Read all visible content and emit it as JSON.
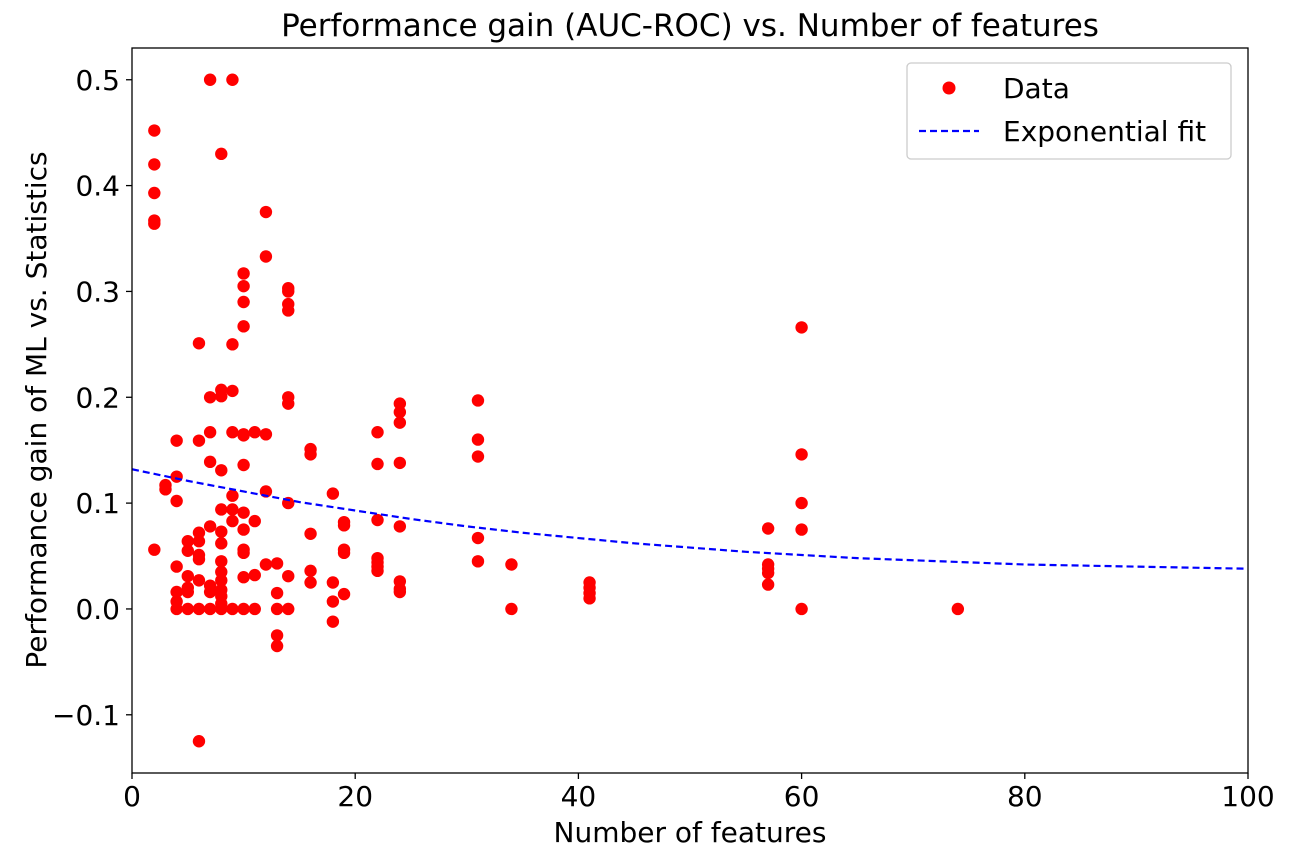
{
  "chart_data": {
    "type": "scatter",
    "title": "Performance gain (AUC-ROC) vs. Number of features",
    "xlabel": "Number of features",
    "ylabel": "Performance gain of ML vs. Statistics",
    "xlim": [
      0,
      100
    ],
    "ylim": [
      -0.155,
      0.53
    ],
    "xticks": [
      0,
      20,
      40,
      60,
      80,
      100
    ],
    "xtick_labels": [
      "0",
      "20",
      "40",
      "60",
      "80",
      "100"
    ],
    "yticks": [
      -0.1,
      0.0,
      0.1,
      0.2,
      0.3,
      0.4,
      0.5
    ],
    "ytick_labels": [
      "−0.1",
      "0.0",
      "0.1",
      "0.2",
      "0.3",
      "0.4",
      "0.5"
    ],
    "grid": false,
    "legend_position": "top-right",
    "series": [
      {
        "name": "Data",
        "kind": "points",
        "color": "#ff0000",
        "points": [
          [
            2,
            0.452
          ],
          [
            2,
            0.42
          ],
          [
            2,
            0.393
          ],
          [
            2,
            0.367
          ],
          [
            2,
            0.364
          ],
          [
            2,
            0.056
          ],
          [
            3,
            0.117
          ],
          [
            3,
            0.113
          ],
          [
            4,
            0.159
          ],
          [
            4,
            0.125
          ],
          [
            4,
            0.102
          ],
          [
            4,
            0.04
          ],
          [
            4,
            0.016
          ],
          [
            4,
            0.007
          ],
          [
            4,
            0.0
          ],
          [
            5,
            0.064
          ],
          [
            5,
            0.055
          ],
          [
            5,
            0.031
          ],
          [
            5,
            0.02
          ],
          [
            5,
            0.016
          ],
          [
            5,
            0.0
          ],
          [
            6,
            0.251
          ],
          [
            6,
            0.159
          ],
          [
            6,
            0.072
          ],
          [
            6,
            0.064
          ],
          [
            6,
            0.051
          ],
          [
            6,
            0.047
          ],
          [
            6,
            0.027
          ],
          [
            6,
            0.0
          ],
          [
            6,
            -0.125
          ],
          [
            7,
            0.5
          ],
          [
            7,
            0.2
          ],
          [
            7,
            0.167
          ],
          [
            7,
            0.139
          ],
          [
            7,
            0.078
          ],
          [
            7,
            0.022
          ],
          [
            7,
            0.016
          ],
          [
            7,
            0.0
          ],
          [
            8,
            0.43
          ],
          [
            8,
            0.207
          ],
          [
            8,
            0.201
          ],
          [
            8,
            0.131
          ],
          [
            8,
            0.094
          ],
          [
            8,
            0.073
          ],
          [
            8,
            0.062
          ],
          [
            8,
            0.045
          ],
          [
            8,
            0.035
          ],
          [
            8,
            0.027
          ],
          [
            8,
            0.018
          ],
          [
            8,
            0.012
          ],
          [
            8,
            0.005
          ],
          [
            8,
            0.0
          ],
          [
            9,
            0.5
          ],
          [
            9,
            0.25
          ],
          [
            9,
            0.206
          ],
          [
            9,
            0.167
          ],
          [
            9,
            0.107
          ],
          [
            9,
            0.094
          ],
          [
            9,
            0.083
          ],
          [
            9,
            0.0
          ],
          [
            10,
            0.317
          ],
          [
            10,
            0.305
          ],
          [
            10,
            0.29
          ],
          [
            10,
            0.267
          ],
          [
            10,
            0.165
          ],
          [
            10,
            0.164
          ],
          [
            10,
            0.136
          ],
          [
            10,
            0.091
          ],
          [
            10,
            0.075
          ],
          [
            10,
            0.056
          ],
          [
            10,
            0.053
          ],
          [
            10,
            0.03
          ],
          [
            10,
            0.0
          ],
          [
            11,
            0.167
          ],
          [
            11,
            0.083
          ],
          [
            11,
            0.032
          ],
          [
            11,
            0.0
          ],
          [
            12,
            0.375
          ],
          [
            12,
            0.333
          ],
          [
            12,
            0.165
          ],
          [
            12,
            0.111
          ],
          [
            12,
            0.042
          ],
          [
            13,
            0.043
          ],
          [
            13,
            0.015
          ],
          [
            13,
            0.0
          ],
          [
            13,
            -0.025
          ],
          [
            13,
            -0.035
          ],
          [
            14,
            0.303
          ],
          [
            14,
            0.3
          ],
          [
            14,
            0.288
          ],
          [
            14,
            0.282
          ],
          [
            14,
            0.2
          ],
          [
            14,
            0.194
          ],
          [
            14,
            0.1
          ],
          [
            14,
            0.031
          ],
          [
            14,
            0.0
          ],
          [
            16,
            0.151
          ],
          [
            16,
            0.146
          ],
          [
            16,
            0.071
          ],
          [
            16,
            0.036
          ],
          [
            16,
            0.025
          ],
          [
            18,
            0.109
          ],
          [
            18,
            0.025
          ],
          [
            18,
            0.007
          ],
          [
            18,
            -0.012
          ],
          [
            19,
            0.082
          ],
          [
            19,
            0.079
          ],
          [
            19,
            0.056
          ],
          [
            19,
            0.053
          ],
          [
            19,
            0.014
          ],
          [
            22,
            0.167
          ],
          [
            22,
            0.137
          ],
          [
            22,
            0.084
          ],
          [
            22,
            0.048
          ],
          [
            22,
            0.044
          ],
          [
            22,
            0.04
          ],
          [
            22,
            0.036
          ],
          [
            24,
            0.194
          ],
          [
            24,
            0.186
          ],
          [
            24,
            0.176
          ],
          [
            24,
            0.138
          ],
          [
            24,
            0.078
          ],
          [
            24,
            0.026
          ],
          [
            24,
            0.019
          ],
          [
            24,
            0.016
          ],
          [
            31,
            0.197
          ],
          [
            31,
            0.16
          ],
          [
            31,
            0.144
          ],
          [
            31,
            0.067
          ],
          [
            31,
            0.045
          ],
          [
            34,
            0.042
          ],
          [
            34,
            0.0
          ],
          [
            41,
            0.025
          ],
          [
            41,
            0.02
          ],
          [
            41,
            0.015
          ],
          [
            41,
            0.01
          ],
          [
            57,
            0.076
          ],
          [
            57,
            0.042
          ],
          [
            57,
            0.038
          ],
          [
            57,
            0.034
          ],
          [
            57,
            0.023
          ],
          [
            60,
            0.266
          ],
          [
            60,
            0.146
          ],
          [
            60,
            0.1
          ],
          [
            60,
            0.075
          ],
          [
            60,
            0.0
          ],
          [
            74,
            0.0
          ]
        ]
      },
      {
        "name": "Exponential fit",
        "kind": "dashed-line",
        "color": "#0000ff",
        "x": [
          0,
          5,
          10,
          15,
          20,
          25,
          30,
          35,
          40,
          45,
          50,
          55,
          60,
          65,
          70,
          75,
          80,
          85,
          90,
          95,
          100
        ],
        "y": [
          0.132,
          0.121,
          0.111,
          0.101,
          0.093,
          0.085,
          0.078,
          0.072,
          0.067,
          0.062,
          0.058,
          0.054,
          0.051,
          0.048,
          0.046,
          0.044,
          0.042,
          0.041,
          0.04,
          0.039,
          0.038
        ]
      }
    ]
  }
}
